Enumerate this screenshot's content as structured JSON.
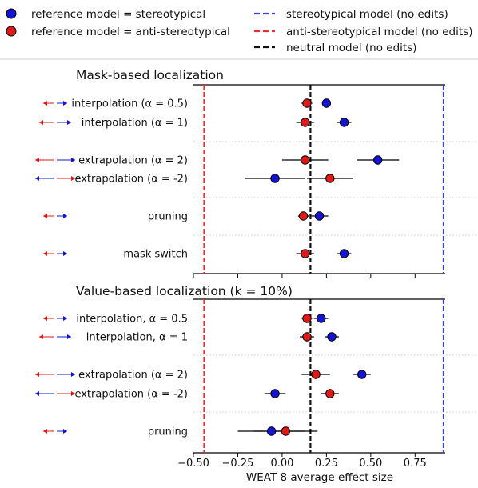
{
  "legend": {
    "items": [
      {
        "label": "reference model = stereotypical",
        "kind": "marker",
        "color": "#1414d2"
      },
      {
        "label": "reference model = anti-stereotypical",
        "kind": "marker",
        "color": "#e01818"
      },
      {
        "label": "stereotypical model (no edits)",
        "kind": "line",
        "color": "#3a3ae0"
      },
      {
        "label": "anti-stereotypical model (no edits)",
        "kind": "line",
        "color": "#ee2a2a"
      },
      {
        "label": "neutral model (no edits)",
        "kind": "line",
        "color": "#111111"
      }
    ]
  },
  "colors": {
    "stereo": "#1414d2",
    "anti": "#e01818",
    "stereo_line": "#3a3ae0",
    "anti_line": "#ee2a2a",
    "neutral_line": "#111111"
  },
  "chart_data": {
    "type": "scatter",
    "xlabel": "WEAT 8 average effect size",
    "xlim": [
      -0.5,
      0.92
    ],
    "xticks": [
      "−0.50",
      "−0.25",
      "0.00",
      "0.25",
      "0.50",
      "0.75"
    ],
    "xtick_values": [
      -0.5,
      -0.25,
      0.0,
      0.25,
      0.5,
      0.75
    ],
    "reference_lines": {
      "stereotypical": 0.91,
      "anti_stereotypical": -0.44,
      "neutral": 0.16
    },
    "panels": [
      {
        "title": "Mask-based localization",
        "rows": [
          {
            "label": "interpolation (α = 0.5)",
            "arrows": "short",
            "stereo": {
              "x": 0.25,
              "err": 0.02
            },
            "anti": {
              "x": 0.14,
              "err": 0.03
            }
          },
          {
            "label": "interpolation (α = 1)",
            "arrows": "long",
            "stereo": {
              "x": 0.35,
              "err": 0.04
            },
            "anti": {
              "x": 0.13,
              "err": 0.05
            }
          },
          {
            "label": "extrapolation (α = 2)",
            "arrows": "extrap-pos",
            "stereo": {
              "x": 0.54,
              "err": 0.12
            },
            "anti": {
              "x": 0.13,
              "err": 0.13
            }
          },
          {
            "label": "extrapolation (α = -2)",
            "arrows": "extrap-neg",
            "stereo": {
              "x": -0.04,
              "err": 0.17
            },
            "anti": {
              "x": 0.27,
              "err": 0.13
            }
          },
          {
            "label": "pruning",
            "arrows": "short",
            "stereo": {
              "x": 0.21,
              "err": 0.05
            },
            "anti": {
              "x": 0.12,
              "err": 0.03
            }
          },
          {
            "label": "mask switch",
            "arrows": "short",
            "stereo": {
              "x": 0.35,
              "err": 0.04
            },
            "anti": {
              "x": 0.13,
              "err": 0.05
            }
          }
        ]
      },
      {
        "title": "Value-based localization (k = 10%)",
        "rows": [
          {
            "label": "interpolation, α = 0.5",
            "arrows": "short",
            "stereo": {
              "x": 0.22,
              "err": 0.04
            },
            "anti": {
              "x": 0.14,
              "err": 0.03
            }
          },
          {
            "label": "interpolation, α = 1",
            "arrows": "long",
            "stereo": {
              "x": 0.28,
              "err": 0.04
            },
            "anti": {
              "x": 0.14,
              "err": 0.04
            }
          },
          {
            "label": "extrapolation (α = 2)",
            "arrows": "extrap-pos",
            "stereo": {
              "x": 0.45,
              "err": 0.05
            },
            "anti": {
              "x": 0.19,
              "err": 0.08
            }
          },
          {
            "label": "extrapolation (α = -2)",
            "arrows": "extrap-neg",
            "stereo": {
              "x": -0.04,
              "err": 0.06
            },
            "anti": {
              "x": 0.27,
              "err": 0.05
            }
          },
          {
            "label": "pruning",
            "arrows": "short",
            "stereo": {
              "x": -0.06,
              "err": 0.19
            },
            "anti": {
              "x": 0.02,
              "err": 0.18
            }
          }
        ]
      }
    ]
  }
}
